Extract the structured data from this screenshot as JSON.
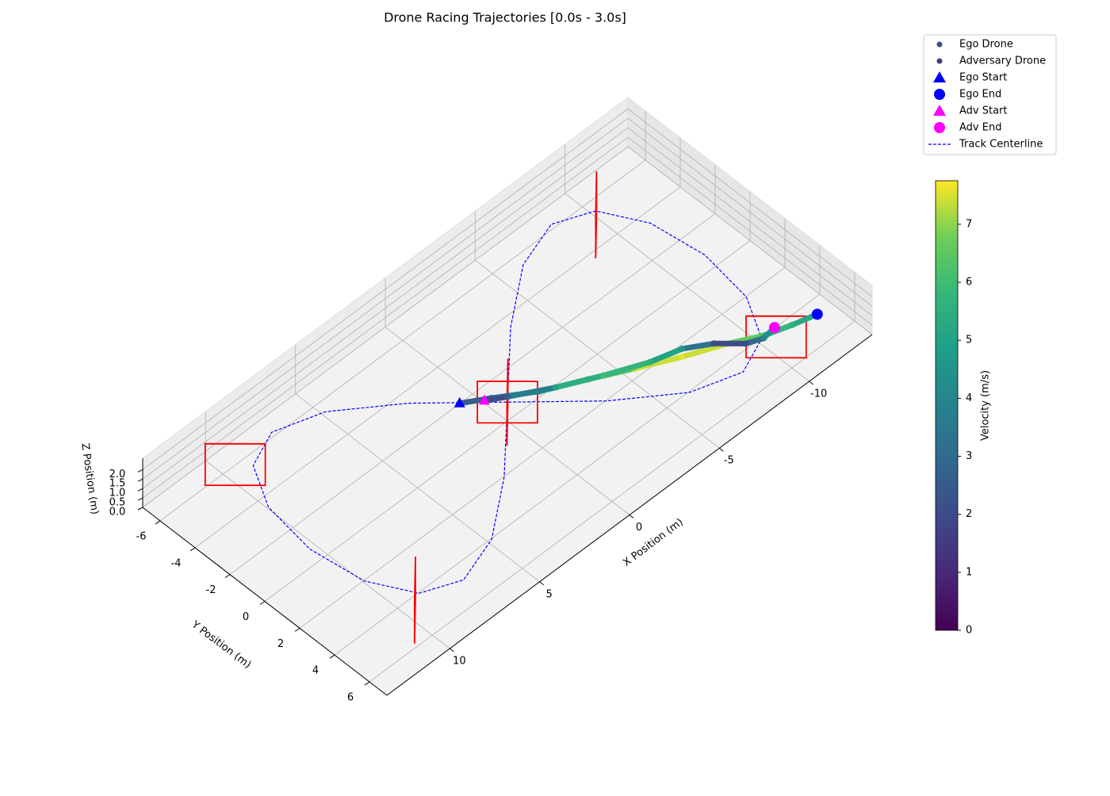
{
  "chart_data": {
    "type": "scatter3d",
    "title": "Drone Racing Trajectories [0.0s - 3.0s]",
    "xlabel": "X Position (m)",
    "ylabel": "Y Position (m)",
    "zlabel": "Z Position (m)",
    "xlim": [
      -13.5,
      13.5
    ],
    "ylim": [
      -7,
      7
    ],
    "zlim": [
      0,
      2.6
    ],
    "xticks": [
      -10,
      -5,
      0,
      5,
      10
    ],
    "yticks": [
      -6,
      -4,
      -2,
      0,
      2,
      4,
      6
    ],
    "zticks": [
      {
        "value": 0,
        "label": "0.0"
      },
      {
        "value": 0.5,
        "label": "0.5"
      },
      {
        "value": 1,
        "label": "1.0"
      },
      {
        "value": 1.5,
        "label": "1.5"
      },
      {
        "value": 2,
        "label": "2.0"
      }
    ],
    "grid": true,
    "legend": "upper right",
    "series": [
      {
        "name": "Ego Drone",
        "start_name": "Ego Start",
        "end_name": "Ego End",
        "color": "#0000ff",
        "x": [
          1.4,
          0.3,
          -1.3,
          -3.1,
          -4.8,
          -6.6,
          -8.4,
          -9.7,
          -10.9,
          -12.0
        ],
        "y": [
          -1.3,
          -0.6,
          0.5,
          1.4,
          2.3,
          3.2,
          4.0,
          4.7,
          5.1,
          5.4
        ],
        "z": [
          1,
          1,
          1,
          1,
          1,
          1,
          1,
          1,
          1,
          1
        ],
        "values": [
          2,
          3,
          4.5,
          6,
          7.2,
          7.6,
          7.2,
          6,
          5.5,
          5
        ]
      },
      {
        "name": "Adversary Drone",
        "start_name": "Adv Start",
        "end_name": "Adv End",
        "color": "#ff00ff",
        "x": [
          0.6,
          -0.2,
          -1.9,
          -3.7,
          -5.5,
          -6.9,
          -8.0,
          -8.9,
          -9.6,
          -10.3
        ],
        "y": [
          -0.7,
          -0.2,
          0.8,
          1.7,
          2.5,
          2.9,
          3.6,
          4.5,
          4.8,
          4.7
        ],
        "z": [
          1,
          1,
          1,
          1,
          1,
          1,
          1,
          1,
          1,
          1
        ],
        "values": [
          1.5,
          2.5,
          5,
          6,
          5.5,
          4.5,
          2,
          2,
          4,
          5
        ]
      }
    ],
    "track": {
      "name": "Track Centerline",
      "color": "#0000ff",
      "z": 1,
      "x": [
        11,
        10.63,
        9.53,
        7.78,
        5.5,
        2.85,
        0,
        -2.85,
        -5.5,
        -7.78,
        -9.53,
        -10.63,
        -11,
        -10.63,
        -9.53,
        -7.78,
        -5.5,
        -2.85,
        0,
        2.85,
        5.5,
        7.78,
        9.53,
        10.63,
        11
      ],
      "y": [
        0,
        2.75,
        4.76,
        5.5,
        4.76,
        2.75,
        0,
        -2.75,
        -4.76,
        -5.5,
        -4.76,
        -2.75,
        0,
        2.75,
        4.76,
        5.5,
        4.76,
        2.75,
        0,
        -2.75,
        -4.76,
        -5.5,
        -4.76,
        -2.75,
        0
      ]
    },
    "gates": {
      "color": "#ff0000",
      "width": 2.4,
      "height": 2.2,
      "x": [
        0,
        0,
        10,
        -10,
        -9.4,
        9.9
      ],
      "y": [
        0,
        0,
        -5.3,
        5.1,
        -4.6,
        4.9
      ],
      "z": [
        1,
        1,
        1,
        1,
        1,
        1
      ],
      "yaw": [
        -45,
        45,
        -45,
        -45,
        45,
        45
      ]
    },
    "colorbar": {
      "label": "Velocity (m/s)",
      "colormap": "viridis",
      "lim": [
        0,
        7.75
      ],
      "ticks": [
        0,
        1,
        2,
        3,
        4,
        5,
        6,
        7
      ]
    }
  }
}
